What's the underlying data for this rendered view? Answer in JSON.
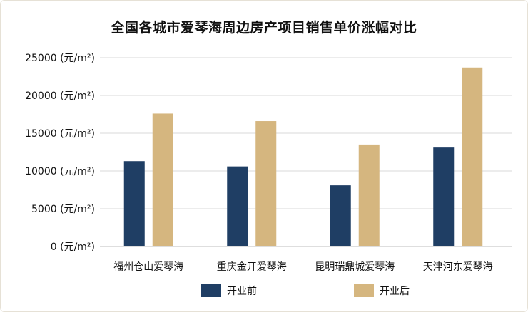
{
  "chart_data": {
    "type": "bar",
    "title": "全国各城市爱琴海周边房产项目销售单价涨幅对比",
    "categories": [
      "福州仓山爱琴海",
      "重庆金开爱琴海",
      "昆明瑞鼎城爱琴海",
      "天津河东爱琴海"
    ],
    "series": [
      {
        "name": "开业前",
        "color": "#1f3e64",
        "values": [
          11300,
          10600,
          8100,
          13100
        ]
      },
      {
        "name": "开业后",
        "color": "#d5b67f",
        "values": [
          17600,
          16600,
          13500,
          23700
        ]
      }
    ],
    "ylim": [
      0,
      25000
    ],
    "yticks": [
      0,
      5000,
      10000,
      15000,
      20000,
      25000
    ],
    "ytick_suffix": " (元/m²)",
    "grid": true,
    "legend_position": "bottom"
  }
}
